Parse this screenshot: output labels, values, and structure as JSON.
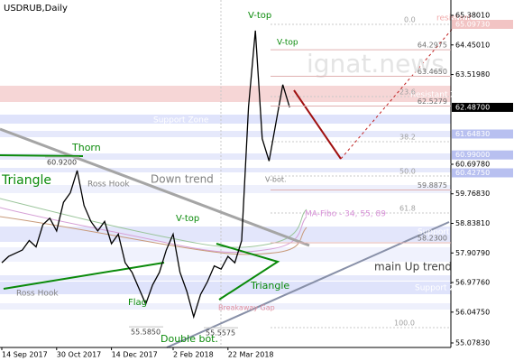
{
  "chart_data": {
    "type": "line",
    "title": "USDRUB,Daily",
    "categories": [
      "14 Sep 2017",
      null,
      null,
      null,
      null,
      null,
      null,
      null,
      "30 Oct 2017",
      null,
      null,
      null,
      null,
      null,
      null,
      null,
      "14 Dec 2017",
      null,
      null,
      null,
      null,
      null,
      null,
      null,
      null,
      "2 Feb 2018",
      null,
      null,
      null,
      null,
      null,
      null,
      null,
      "22 Mar 2018",
      null,
      null,
      null,
      null,
      null,
      null,
      null,
      null,
      null
    ],
    "values": [
      57.6,
      57.8,
      57.9,
      58.0,
      58.3,
      58.1,
      58.8,
      59.0,
      58.6,
      59.5,
      59.8,
      60.5,
      59.4,
      58.9,
      58.6,
      58.9,
      58.2,
      58.5,
      57.6,
      57.3,
      56.8,
      56.3,
      56.9,
      57.3,
      58.0,
      58.5,
      57.3,
      56.7,
      55.9,
      56.6,
      57.0,
      57.5,
      57.4,
      57.8,
      57.6,
      58.3,
      62.5,
      64.9,
      61.5,
      60.8,
      62.0,
      63.2,
      62.487
    ],
    "color": "#000000",
    "ylim": [
      54.936,
      65.863
    ],
    "yticks": [
      {
        "value": 65.3801,
        "label": "65.38010"
      },
      {
        "value": 64.4501,
        "label": "64.45010"
      },
      {
        "value": 63.5198,
        "label": "63.51980"
      },
      {
        "value": 60.6978,
        "label": "60.69780"
      },
      {
        "value": 59.7683,
        "label": "59.76830"
      },
      {
        "value": 58.8381,
        "label": "58.83810"
      },
      {
        "value": 57.9079,
        "label": "57.90790"
      },
      {
        "value": 56.9776,
        "label": "56.97760"
      },
      {
        "value": 56.0475,
        "label": "56.04750"
      },
      {
        "value": 55.0783,
        "label": "55.07830"
      }
    ],
    "price_tags": [
      {
        "value": 65.0973,
        "label": "65.09730",
        "color": "#f2c4c4"
      },
      {
        "value": 62.487,
        "label": "62.48700",
        "color": "#000000"
      },
      {
        "value": 61.6483,
        "label": "61.64830",
        "color": "#b8c0f0"
      },
      {
        "value": 60.99,
        "label": "60.99000",
        "color": "#b8c0f0"
      },
      {
        "value": 60.4275,
        "label": "60.42750",
        "color": "#b8c0f0"
      }
    ],
    "levels": [
      {
        "value": 64.2975,
        "label": "64.2975"
      },
      {
        "value": 63.465,
        "label": "63.4650"
      },
      {
        "value": 62.5279,
        "label": "62.5279"
      },
      {
        "value": 59.8875,
        "label": "59.8875"
      },
      {
        "value": 58.23,
        "label": "58.2300"
      },
      {
        "value": 60.92,
        "label": "60.9200"
      },
      {
        "value": 55.585,
        "label": "55.5850"
      },
      {
        "value": 55.5575,
        "label": "55.5575"
      }
    ],
    "annotations": [
      "V-top",
      "V-top",
      "V-top",
      "Thorn",
      "Triangle",
      "Triangle",
      "Ross Hook",
      "Ross Hook",
      "Down trend",
      "V-bot.",
      "MA-Fibo - 34, 55, 89",
      "main Up trend",
      "Flag",
      "Double bot.",
      "Breakaway Gap",
      "ignat.news",
      "resistant",
      "Resistant Zone",
      "Support Zone",
      "support",
      "Support Zone",
      "Support Zone",
      "0.0",
      "23.6",
      "38.2",
      "50.0",
      "61.8",
      "100.0"
    ]
  }
}
